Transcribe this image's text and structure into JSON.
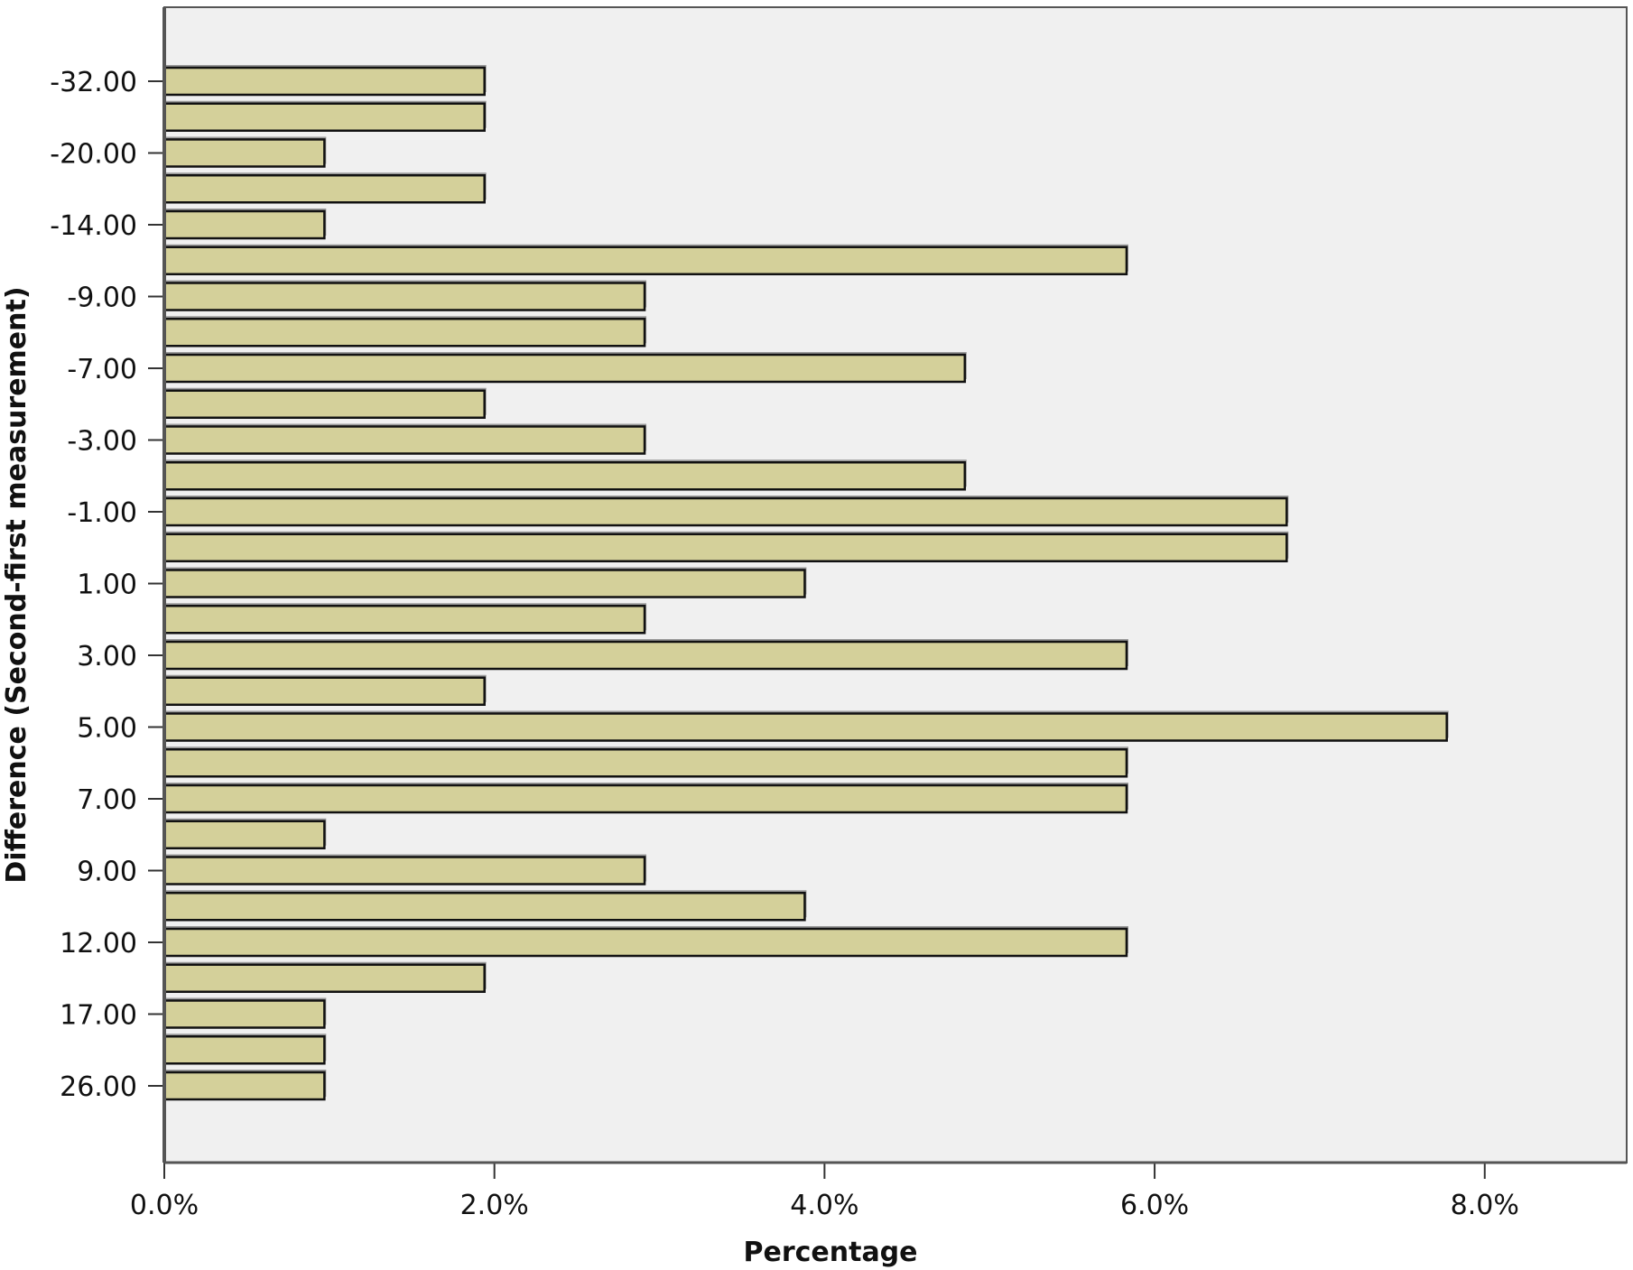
{
  "chart_data": {
    "type": "bar",
    "orientation": "horizontal",
    "xlabel": "Percentage",
    "ylabel": "Difference (Second-first measurement)",
    "xlim": [
      0,
      8.86
    ],
    "x_ticks": [
      "0.0%",
      "2.0%",
      "4.0%",
      "6.0%",
      "8.0%"
    ],
    "categories": [
      "-32.00",
      "",
      "-20.00",
      "",
      "-14.00",
      "",
      "-9.00",
      "",
      "-7.00",
      "",
      "-3.00",
      "",
      "-1.00",
      "",
      "1.00",
      "",
      "3.00",
      "",
      "5.00",
      "",
      "7.00",
      "",
      "9.00",
      "",
      "12.00",
      "",
      "17.00",
      "",
      "26.00"
    ],
    "values": [
      1.94,
      1.94,
      0.97,
      1.94,
      0.97,
      5.83,
      2.91,
      2.91,
      4.85,
      1.94,
      2.91,
      4.85,
      6.8,
      6.8,
      3.88,
      2.91,
      5.83,
      1.94,
      7.77,
      5.83,
      5.83,
      0.97,
      2.91,
      3.88,
      5.83,
      1.94,
      0.97,
      0.97,
      0.97
    ],
    "grid": false,
    "colors": {
      "bar_fill": "#d4d09a",
      "bar_stroke": "#111111",
      "plot_background": "#f0f0f0",
      "axis": "#555555"
    }
  }
}
